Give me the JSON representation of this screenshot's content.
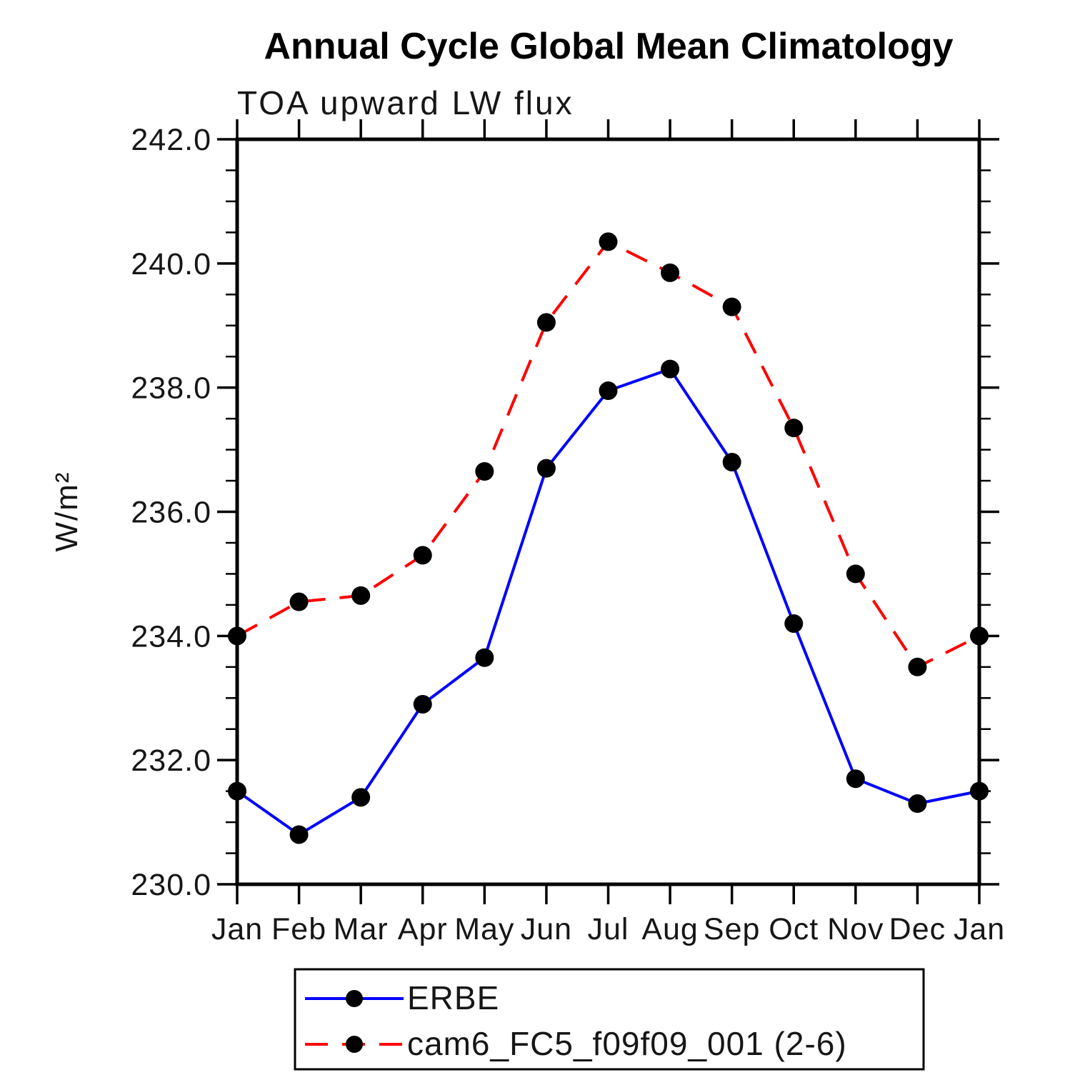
{
  "chart_data": {
    "type": "line",
    "title": "Annual Cycle Global Mean Climatology",
    "subtitle": "TOA upward LW flux",
    "ylabel": "W/m²",
    "xlabel": "",
    "ylim": [
      230.0,
      242.0
    ],
    "ytick_step": 2.0,
    "ytick_minor_step": 0.5,
    "ytick_labels": [
      "230.0",
      "232.0",
      "234.0",
      "236.0",
      "238.0",
      "240.0",
      "242.0"
    ],
    "categories": [
      "Jan",
      "Feb",
      "Mar",
      "Apr",
      "May",
      "Jun",
      "Jul",
      "Aug",
      "Sep",
      "Oct",
      "Nov",
      "Dec",
      "Jan"
    ],
    "grid": false,
    "legend_position": "bottom",
    "series": [
      {
        "name": "ERBE",
        "color": "#0000ff",
        "line_style": "solid",
        "marker": "filled-circle",
        "marker_color": "#000000",
        "values": [
          231.5,
          230.8,
          231.4,
          232.9,
          233.65,
          236.7,
          237.95,
          238.3,
          236.8,
          234.2,
          231.7,
          231.3,
          231.5
        ]
      },
      {
        "name": "cam6_FC5_f09f09_001 (2-6)",
        "color": "#ff0000",
        "line_style": "dashed",
        "marker": "filled-circle",
        "marker_color": "#000000",
        "values": [
          234.0,
          234.55,
          234.65,
          235.3,
          236.65,
          239.05,
          240.35,
          239.85,
          239.3,
          237.35,
          235.0,
          233.5,
          234.0
        ]
      }
    ]
  }
}
